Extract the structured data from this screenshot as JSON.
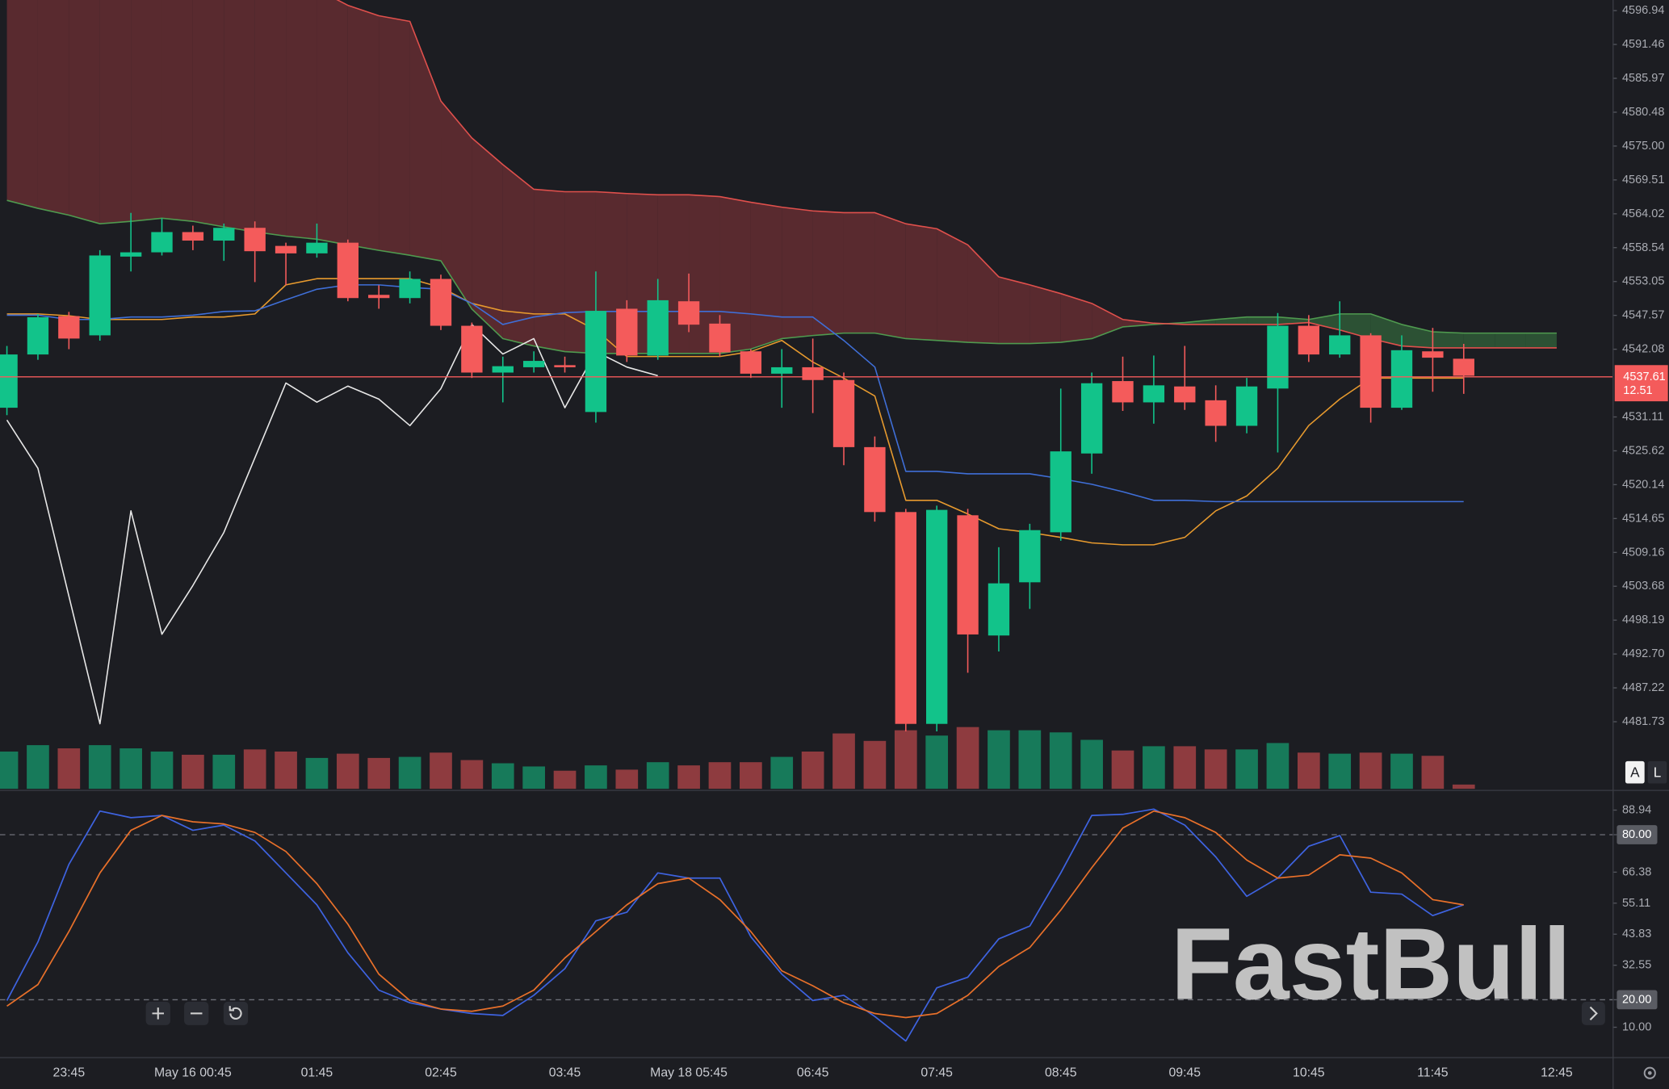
{
  "watermark": "FastBull",
  "buttons": {
    "auto": "A",
    "log": "L"
  },
  "chart_data": [
    {
      "type": "candlestick",
      "categories": [
        null,
        null,
        "23:45",
        null,
        null,
        null,
        "May 16 00:45",
        null,
        null,
        null,
        "01:45",
        null,
        null,
        null,
        "02:45",
        null,
        null,
        null,
        "03:45",
        null,
        null,
        null,
        "May 18 05:45",
        null,
        null,
        null,
        "06:45",
        null,
        null,
        null,
        "07:45",
        null,
        null,
        null,
        "08:45",
        null,
        null,
        null,
        "09:45",
        null,
        null,
        null,
        "10:45",
        null,
        null,
        null,
        "11:45",
        null,
        null,
        null,
        "12:45"
      ],
      "open": [
        4532.6,
        4541.23,
        4547.44,
        4544.33,
        4557.09,
        4557.78,
        4561.06,
        4559.68,
        4561.75,
        4558.82,
        4557.61,
        4559.34,
        4550.89,
        4550.37,
        4553.47,
        4545.88,
        4538.3,
        4539.16,
        4539.5,
        4531.91,
        4548.64,
        4541.06,
        4549.85,
        4546.23,
        4541.74,
        4538.12,
        4539.16,
        4537.09,
        4526.22,
        4515.7,
        4481.38,
        4515.18,
        4495.7,
        4504.32,
        4512.42,
        4525.19,
        4536.92,
        4533.47,
        4536.05,
        4533.81,
        4529.67,
        4535.71,
        4545.88,
        4541.23,
        4544.33,
        4532.6,
        4541.74,
        4540.54,
        null,
        null,
        null
      ],
      "high": [
        4542.61,
        4547.78,
        4548.13,
        4558.13,
        4564.17,
        4563.3,
        4562.1,
        4562.44,
        4562.79,
        4559.34,
        4562.44,
        4559.85,
        4552.44,
        4554.68,
        4554.16,
        4546.4,
        4540.88,
        4541.74,
        4540.88,
        4554.68,
        4550.02,
        4553.47,
        4554.34,
        4547.61,
        4542.09,
        4542.09,
        4543.81,
        4538.3,
        4527.95,
        4516.22,
        4516.74,
        4516.22,
        4510.01,
        4513.8,
        4535.71,
        4538.3,
        4540.88,
        4541.06,
        4542.61,
        4536.23,
        4537.43,
        4547.95,
        4547.61,
        4549.85,
        4544.68,
        4544.33,
        4545.54,
        4542.95,
        null,
        null,
        null
      ],
      "low": [
        4531.4,
        4540.37,
        4542.09,
        4543.47,
        4554.68,
        4557.27,
        4558.13,
        4556.4,
        4552.96,
        4552.44,
        4556.92,
        4549.85,
        4548.64,
        4549.51,
        4545.19,
        4537.43,
        4533.47,
        4538.3,
        4538.3,
        4530.19,
        4540.02,
        4540.37,
        4544.85,
        4540.88,
        4537.43,
        4532.6,
        4531.74,
        4523.29,
        4514.15,
        4480.17,
        4480.17,
        4489.66,
        4493.11,
        4500.01,
        4511.05,
        4521.91,
        4532.09,
        4530.02,
        4532.26,
        4527.08,
        4528.46,
        4525.36,
        4540.02,
        4540.71,
        4530.19,
        4532.26,
        4535.19,
        4534.85,
        null,
        null,
        null
      ],
      "close": [
        4541.23,
        4547.26,
        4543.81,
        4557.27,
        4557.78,
        4561.06,
        4559.68,
        4561.75,
        4557.96,
        4557.61,
        4559.34,
        4550.37,
        4550.37,
        4553.47,
        4545.88,
        4538.3,
        4539.33,
        4540.19,
        4539.16,
        4548.3,
        4541.06,
        4550.02,
        4546.06,
        4541.57,
        4538.12,
        4539.16,
        4537.09,
        4526.22,
        4515.7,
        4481.38,
        4516.05,
        4495.87,
        4504.15,
        4512.77,
        4525.53,
        4536.57,
        4533.47,
        4536.23,
        4533.47,
        4529.67,
        4536.05,
        4545.88,
        4541.23,
        4544.33,
        4532.6,
        4541.92,
        4540.71,
        4537.78,
        null,
        null,
        null
      ],
      "volume": [
        35,
        41,
        38,
        41,
        38,
        35,
        32,
        32,
        37,
        35,
        29,
        33,
        29,
        30,
        34,
        27,
        24,
        21,
        17,
        22,
        18,
        25,
        22,
        25,
        25,
        30,
        35,
        52,
        45,
        55,
        50,
        58,
        55,
        55,
        53,
        46,
        36,
        40,
        40,
        37,
        37,
        43,
        34,
        33,
        34,
        33,
        31,
        4,
        null,
        null,
        null
      ],
      "up_color": "#12c38a",
      "down_color": "#f45b5b",
      "volume_up_color": "#177a5a",
      "volume_down_color": "#8e3b3f",
      "cloud": {
        "span_a": [
          4566.2,
          4564.9,
          4563.8,
          4562.4,
          4562.8,
          4563.3,
          4562.8,
          4561.9,
          4561.1,
          4560.4,
          4559.9,
          4559.0,
          4558.1,
          4557.3,
          4556.4,
          4548.6,
          4543.8,
          4542.6,
          4541.7,
          4541.4,
          4541.4,
          4541.4,
          4541.4,
          4541.4,
          4542.1,
          4543.8,
          4544.3,
          4544.7,
          4544.7,
          4543.8,
          4543.5,
          4543.2,
          4543.0,
          4543.0,
          4543.2,
          4543.8,
          4545.7,
          4546.1,
          4546.4,
          4546.9,
          4547.3,
          4547.3,
          4546.9,
          4547.8,
          4547.8,
          4546.1,
          4544.9,
          4544.7,
          4544.7,
          4544.7,
          4544.7
        ],
        "span_b": [
          4600.4,
          4600.4,
          4600.4,
          4600.4,
          4600.4,
          4600.4,
          4600.4,
          4600.4,
          4600.4,
          4600.4,
          4600.4,
          4597.8,
          4596.1,
          4595.2,
          4582.3,
          4576.3,
          4572.0,
          4568.0,
          4567.6,
          4567.6,
          4567.3,
          4567.1,
          4567.1,
          4566.8,
          4565.9,
          4565.1,
          4564.5,
          4564.2,
          4564.2,
          4562.4,
          4561.6,
          4559.0,
          4553.8,
          4552.5,
          4551.1,
          4549.5,
          4546.9,
          4546.3,
          4546.1,
          4546.1,
          4546.1,
          4546.1,
          4546.4,
          4545.2,
          4543.8,
          4542.6,
          4542.3,
          4542.3,
          4542.3,
          4542.3,
          4542.3
        ],
        "span_a_color": "#4f9a4f",
        "span_b_color": "#e0504c",
        "bear_fill": "#642d31",
        "bull_fill": "#2f5a37"
      },
      "series": [
        {
          "color": "#e79a2e",
          "values": [
            4547.8,
            4547.8,
            4547.5,
            4546.9,
            4546.9,
            4546.9,
            4547.3,
            4547.3,
            4547.8,
            4552.5,
            4553.5,
            4553.5,
            4553.5,
            4553.5,
            4552.1,
            4549.5,
            4548.3,
            4547.8,
            4547.8,
            4545.2,
            4540.9,
            4540.9,
            4540.9,
            4540.9,
            4541.7,
            4543.5,
            4540.0,
            4537.4,
            4534.5,
            4517.6,
            4517.6,
            4515.4,
            4513.0,
            4512.4,
            4511.6,
            4510.7,
            4510.4,
            4510.4,
            4511.6,
            4515.9,
            4518.3,
            4522.8,
            4529.7,
            4534.0,
            4537.4,
            4537.4,
            4537.4,
            4537.4,
            null,
            null,
            null
          ]
        },
        {
          "color": "#3f6fd8",
          "values": [
            4547.6,
            4547.6,
            4546.9,
            4546.9,
            4547.3,
            4547.3,
            4547.6,
            4548.2,
            4548.3,
            4550.1,
            4551.8,
            4552.5,
            4552.5,
            4552.1,
            4551.8,
            4549.5,
            4546.1,
            4547.3,
            4548.0,
            4548.2,
            4548.2,
            4548.2,
            4548.2,
            4548.2,
            4547.8,
            4547.3,
            4547.3,
            4543.5,
            4539.2,
            4522.3,
            4522.3,
            4521.9,
            4521.9,
            4521.9,
            4521.1,
            4520.2,
            4519.0,
            4517.6,
            4517.6,
            4517.4,
            4517.4,
            4517.4,
            4517.4,
            4517.4,
            4517.4,
            4517.4,
            4517.4,
            4517.4,
            null,
            null,
            null
          ]
        },
        {
          "color": "#e8e8e8",
          "values": [
            4530.6,
            4522.8,
            4502.1,
            4481.4,
            4515.9,
            4495.9,
            4503.8,
            4512.4,
            4524.5,
            4536.6,
            4533.5,
            4536.1,
            4534.0,
            4529.7,
            4535.7,
            4546.1,
            4541.3,
            4543.8,
            4532.6,
            4541.7,
            4539.2,
            4537.8,
            null,
            null,
            null,
            null,
            null,
            null,
            null,
            null,
            null,
            null,
            null,
            null,
            null,
            null,
            null,
            null,
            null,
            null,
            null,
            null,
            null,
            null,
            null,
            null,
            null,
            null,
            null,
            null,
            null
          ]
        }
      ],
      "ylim": [
        4470.69,
        4598.66
      ],
      "yticks": [
        4596.94,
        4591.46,
        4585.97,
        4580.48,
        {
          "value": 4575,
          "label": "4575.00"
        },
        4569.51,
        4564.02,
        4558.54,
        4553.05,
        4547.57,
        4542.08,
        4531.11,
        4525.62,
        4520.14,
        4514.65,
        4509.16,
        4503.68,
        4498.19,
        {
          "value": 4492.7,
          "label": "4492.70"
        },
        4487.22,
        4481.73
      ],
      "last_price": 4537.61,
      "last_price_countdown": "12.51",
      "last_price_color": "#f45b5b"
    },
    {
      "type": "line",
      "series": [
        {
          "color": "#3e63e0",
          "values": [
            19.7,
            41.0,
            69.2,
            88.6,
            86.2,
            87.0,
            81.6,
            83.5,
            77.7,
            66.1,
            54.5,
            37.1,
            23.5,
            18.9,
            16.6,
            15.0,
            14.3,
            21.6,
            31.3,
            48.7,
            51.8,
            66.1,
            64.2,
            64.2,
            42.9,
            29.3,
            19.7,
            21.6,
            13.9,
            5.0,
            24.3,
            28.2,
            42.1,
            46.8,
            66.1,
            87.0,
            87.4,
            89.3,
            83.5,
            71.9,
            57.6,
            64.2,
            75.8,
            79.7,
            59.1,
            58.4,
            50.6,
            54.5,
            null,
            null,
            null
          ]
        },
        {
          "color": "#e8702a",
          "values": [
            17.7,
            25.5,
            44.8,
            66.1,
            81.6,
            87.0,
            84.7,
            83.9,
            80.8,
            73.9,
            62.2,
            47.5,
            29.3,
            19.7,
            16.6,
            15.8,
            17.7,
            23.5,
            35.2,
            44.8,
            54.5,
            62.2,
            64.2,
            56.4,
            44.8,
            30.5,
            25.1,
            18.9,
            15.0,
            13.5,
            15.0,
            21.6,
            32.1,
            39.0,
            52.6,
            68.0,
            82.4,
            88.6,
            86.2,
            80.8,
            70.8,
            64.2,
            65.3,
            72.7,
            71.5,
            66.1,
            56.4,
            54.5,
            null,
            null,
            null
          ]
        }
      ],
      "ylim": [
        -0.84,
        95.52
      ],
      "yticks": [
        88.94,
        {
          "value": 80,
          "label": "80.00"
        },
        66.38,
        55.11,
        43.83,
        32.55,
        {
          "value": 20,
          "label": "20.00"
        },
        {
          "value": 10,
          "label": "10.00"
        }
      ],
      "levels": [
        80,
        20
      ]
    }
  ]
}
